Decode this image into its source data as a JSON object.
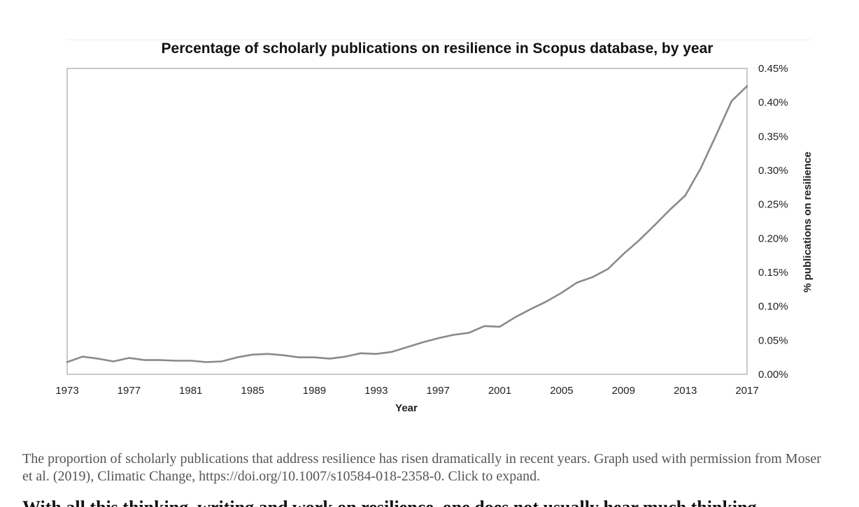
{
  "chart_data": {
    "type": "line",
    "title": "Percentage of scholarly publications on resilience in Scopus database, by year",
    "xlabel": "Year",
    "ylabel": "% publications on resilience",
    "xlim": [
      1973,
      2017
    ],
    "ylim": [
      0,
      0.45
    ],
    "x_ticks": [
      1973,
      1977,
      1981,
      1985,
      1989,
      1993,
      1997,
      2001,
      2005,
      2009,
      2013,
      2017
    ],
    "y_ticks": [
      0,
      0.05,
      0.1,
      0.15,
      0.2,
      0.25,
      0.3,
      0.35,
      0.4,
      0.45
    ],
    "y_tick_labels": [
      "0.00%",
      "0.05%",
      "0.10%",
      "0.15%",
      "0.20%",
      "0.25%",
      "0.30%",
      "0.35%",
      "0.40%",
      "0.45%"
    ],
    "y_axis_side": "right",
    "grid": false,
    "line_color": "#8a8a8a",
    "frame_color": "#b8b8b8",
    "series": [
      {
        "x": [
          1973,
          1974,
          1975,
          1976,
          1977,
          1978,
          1979,
          1980,
          1981,
          1982,
          1983,
          1984,
          1985,
          1986,
          1987,
          1988,
          1989,
          1990,
          1991,
          1992,
          1993,
          1994,
          1995,
          1996,
          1997,
          1998,
          1999,
          2000,
          2001,
          2002,
          2003,
          2004,
          2005,
          2006,
          2007,
          2008,
          2009,
          2010,
          2011,
          2012,
          2013,
          2014,
          2015,
          2016,
          2017
        ],
        "y": [
          0.018,
          0.026,
          0.023,
          0.019,
          0.024,
          0.021,
          0.021,
          0.02,
          0.02,
          0.018,
          0.019,
          0.025,
          0.029,
          0.03,
          0.028,
          0.025,
          0.025,
          0.023,
          0.026,
          0.031,
          0.03,
          0.033,
          0.04,
          0.047,
          0.053,
          0.058,
          0.061,
          0.071,
          0.07,
          0.084,
          0.096,
          0.107,
          0.12,
          0.135,
          0.143,
          0.155,
          0.177,
          0.197,
          0.219,
          0.242,
          0.263,
          0.303,
          0.352,
          0.402,
          0.424
        ]
      }
    ]
  },
  "caption": {
    "text": "The proportion of scholarly publications that address resilience has risen dramatically in recent years. Graph used with permission from Moser et al. (2019), Climatic Change, https://doi.org/10.1007/s10584-018-2358-0. Click to expand.",
    "next_line": "With all this thinking, writing and work on resilience, one does not usually hear much thinking"
  }
}
